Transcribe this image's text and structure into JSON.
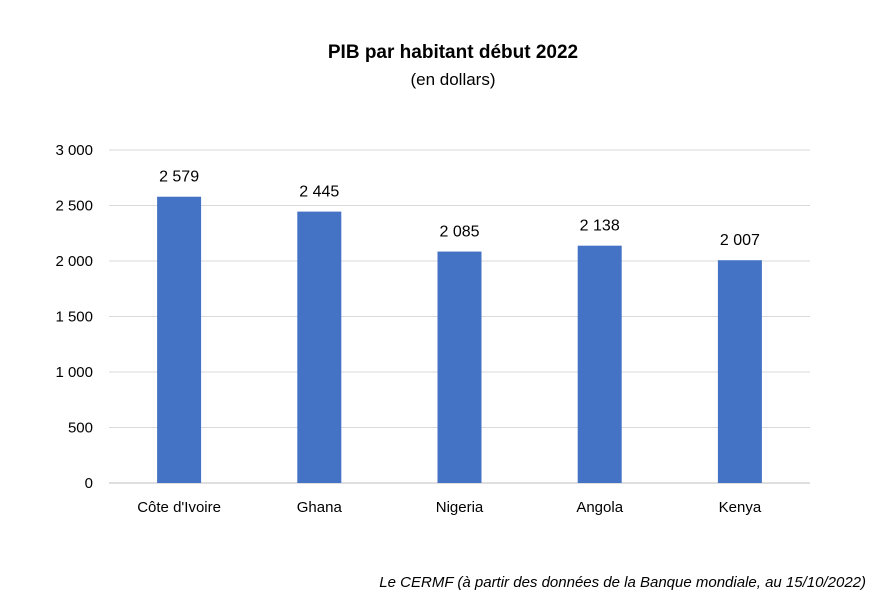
{
  "chart_data": {
    "type": "bar",
    "title": "PIB par habitant début 2022",
    "subtitle": "(en dollars)",
    "categories": [
      "Côte d'Ivoire",
      "Ghana",
      "Nigeria",
      "Angola",
      "Kenya"
    ],
    "values": [
      2579,
      2445,
      2085,
      2138,
      2007
    ],
    "data_labels": [
      "2 579",
      "2 445",
      "2 085",
      "2 138",
      "2 007"
    ],
    "yticks": [
      0,
      500,
      1000,
      1500,
      2000,
      2500,
      3000
    ],
    "ytick_labels": [
      "0",
      "500",
      "1 000",
      "1 500",
      "2 000",
      "2 500",
      "3 000"
    ],
    "ylim": [
      0,
      3000
    ],
    "grid": true,
    "bar_color": "#4472C4",
    "xlabel": "",
    "ylabel": ""
  },
  "footnote": "Le CERMF (à partir des données de la Banque mondiale, au 15/10/2022)"
}
